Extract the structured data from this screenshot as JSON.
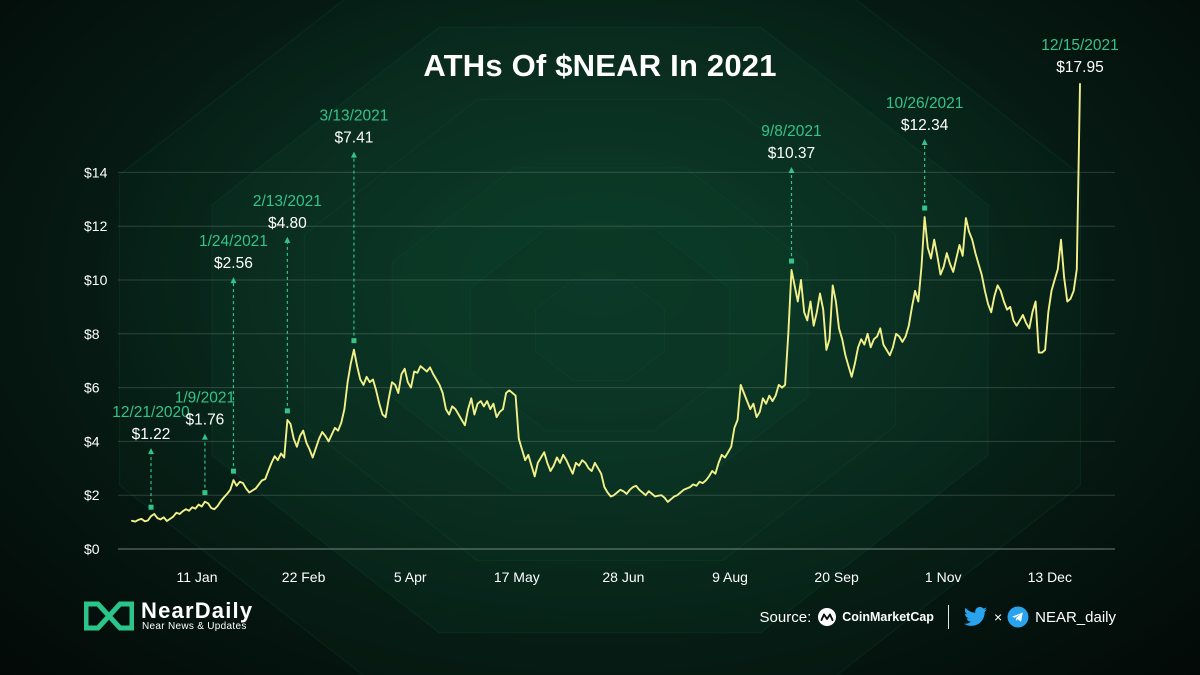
{
  "chart_data": {
    "type": "line",
    "title": "ATHs Of $NEAR In 2021",
    "ylim": [
      0,
      14
    ],
    "yticks": [
      "$0",
      "$2",
      "$4",
      "$6",
      "$8",
      "$10",
      "$12",
      "$14"
    ],
    "xtick_labels": [
      "11 Jan",
      "22 Feb",
      "5 Apr",
      "17 May",
      "28 Jun",
      "9 Aug",
      "20 Sep",
      "1 Nov",
      "13 Dec"
    ],
    "grid": "horizontal",
    "line_color": "#f2f089",
    "annotation_color": "#34c38a",
    "series": [
      {
        "values": [
          1.05,
          1.02,
          1.08,
          1.12,
          1.03,
          1.06,
          1.22,
          1.3,
          1.15,
          1.1,
          1.18,
          1.04,
          1.12,
          1.2,
          1.35,
          1.3,
          1.4,
          1.48,
          1.42,
          1.55,
          1.5,
          1.65,
          1.58,
          1.76,
          1.7,
          1.52,
          1.48,
          1.6,
          1.78,
          1.92,
          2.05,
          2.2,
          2.56,
          2.35,
          2.5,
          2.45,
          2.25,
          2.1,
          2.18,
          2.25,
          2.4,
          2.55,
          2.6,
          2.9,
          3.2,
          3.45,
          3.3,
          3.55,
          3.4,
          4.8,
          4.65,
          4.1,
          3.8,
          4.2,
          4.4,
          3.95,
          3.7,
          3.4,
          3.75,
          4.1,
          4.35,
          4.2,
          4.0,
          4.25,
          4.5,
          4.4,
          4.7,
          5.2,
          6.2,
          6.9,
          7.41,
          6.8,
          6.3,
          6.1,
          6.4,
          6.2,
          6.3,
          5.9,
          5.4,
          5.0,
          4.9,
          5.6,
          6.2,
          6.1,
          5.8,
          6.5,
          6.7,
          6.2,
          6.0,
          6.6,
          6.55,
          6.8,
          6.7,
          6.6,
          6.75,
          6.5,
          6.3,
          6.1,
          5.8,
          5.2,
          5.0,
          5.3,
          5.2,
          5.0,
          4.8,
          4.6,
          5.2,
          5.6,
          5.0,
          5.4,
          5.5,
          5.3,
          5.5,
          5.2,
          5.4,
          4.9,
          5.1,
          5.2,
          5.8,
          5.9,
          5.8,
          5.7,
          4.1,
          3.7,
          3.3,
          3.5,
          3.1,
          2.7,
          3.2,
          3.4,
          3.6,
          3.2,
          2.9,
          3.1,
          3.4,
          3.2,
          3.5,
          3.3,
          3.05,
          2.8,
          3.2,
          3.1,
          3.3,
          3.2,
          3.0,
          2.9,
          3.2,
          3.0,
          2.8,
          2.3,
          2.1,
          1.95,
          2.0,
          2.1,
          2.2,
          2.15,
          2.05,
          2.2,
          2.3,
          2.35,
          2.2,
          2.1,
          2.0,
          2.15,
          2.05,
          1.95,
          1.98,
          2.0,
          1.9,
          1.75,
          1.85,
          1.95,
          2.0,
          2.1,
          2.2,
          2.25,
          2.3,
          2.4,
          2.35,
          2.5,
          2.45,
          2.55,
          2.7,
          2.9,
          2.8,
          3.2,
          3.5,
          3.4,
          3.6,
          3.8,
          4.5,
          4.8,
          6.1,
          5.8,
          5.5,
          5.2,
          5.4,
          4.9,
          5.1,
          5.6,
          5.4,
          5.7,
          5.5,
          5.7,
          6.1,
          6.0,
          6.1,
          8.0,
          10.37,
          9.8,
          9.2,
          10.0,
          8.8,
          8.5,
          9.2,
          8.3,
          8.8,
          9.5,
          8.9,
          7.4,
          7.8,
          9.8,
          9.2,
          8.2,
          7.8,
          7.2,
          6.8,
          6.4,
          6.9,
          7.5,
          7.8,
          7.6,
          8.0,
          7.5,
          7.8,
          7.9,
          8.2,
          7.6,
          7.4,
          7.2,
          7.5,
          8.0,
          7.9,
          7.7,
          7.9,
          8.3,
          9.0,
          9.6,
          9.2,
          10.5,
          12.34,
          11.2,
          10.8,
          11.5,
          10.9,
          10.2,
          10.5,
          11.0,
          10.6,
          10.3,
          10.8,
          11.3,
          10.9,
          12.3,
          11.8,
          11.5,
          11.0,
          10.6,
          10.2,
          9.6,
          9.1,
          8.8,
          9.4,
          9.8,
          9.6,
          9.2,
          8.9,
          9.0,
          8.5,
          8.3,
          8.5,
          8.7,
          8.4,
          8.2,
          8.8,
          9.2,
          7.3,
          7.3,
          7.4,
          8.8,
          9.6,
          10.0,
          10.4,
          11.5,
          10.1,
          9.2,
          9.3,
          9.6,
          10.4,
          17.95
        ]
      }
    ],
    "annotations": [
      {
        "date": "12/21/2020",
        "price": "$1.22",
        "index": 6,
        "value": 1.22
      },
      {
        "date": "1/9/2021",
        "price": "$1.76",
        "index": 23,
        "value": 1.76
      },
      {
        "date": "1/24/2021",
        "price": "$2.56",
        "index": 32,
        "value": 2.56
      },
      {
        "date": "2/13/2021",
        "price": "$4.80",
        "index": 49,
        "value": 4.8
      },
      {
        "date": "3/13/2021",
        "price": "$7.41",
        "index": 70,
        "value": 7.41
      },
      {
        "date": "9/8/2021",
        "price": "$10.37",
        "index": 208,
        "value": 10.37
      },
      {
        "date": "10/26/2021",
        "price": "$12.34",
        "index": 250,
        "value": 12.34
      },
      {
        "date": "12/15/2021",
        "price": "$17.95",
        "index": 299,
        "value": 17.95
      }
    ]
  },
  "brand": {
    "name": "NearDaily",
    "tagline": "Near News & Updates",
    "color": "#2bc48a"
  },
  "footer": {
    "source_label": "Source:",
    "source_name": "CoinMarketCap",
    "separator": "×",
    "handle": "NEAR_daily"
  },
  "icons": {
    "brand": "neardaily-logo-icon",
    "source": "coinmarketcap-icon",
    "social_1": "twitter-icon",
    "social_2": "telegram-icon"
  }
}
